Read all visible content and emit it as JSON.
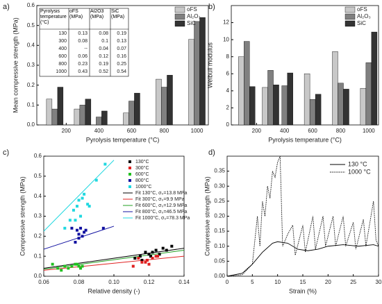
{
  "chart_data": [
    {
      "type": "bar",
      "panel": "a)",
      "x_label": "Pyrolysis temperature (°C)",
      "y_label": "Mean compressive strength (MPa)",
      "x": [
        130,
        300,
        400,
        600,
        800,
        1000
      ],
      "series": [
        {
          "name": "oFS",
          "color": "#c8c8c8",
          "values": [
            0.13,
            0.08,
            null,
            0.06,
            0.23,
            0.43
          ]
        },
        {
          "name": "Al₂O₃",
          "color": "#808080",
          "values": [
            0.08,
            0.1,
            0.04,
            0.12,
            0.19,
            0.52
          ]
        },
        {
          "name": "SiC",
          "color": "#333333",
          "values": [
            0.19,
            0.13,
            0.07,
            0.16,
            0.25,
            0.54
          ]
        }
      ],
      "xlim": [
        20,
        1070
      ],
      "xticks": [
        200,
        400,
        600,
        800,
        1000
      ],
      "ylim": [
        0,
        0.6
      ],
      "yticks": [
        {
          "value": 0,
          "label": "0.0"
        },
        0.1,
        0.2,
        0.3,
        0.4,
        0.5,
        0.6
      ],
      "legend": "upper right",
      "table": {
        "header": [
          "Pyrolysis temperature (°C)",
          "oFS (MPa)",
          "Al2O3 (MPa)",
          "SiC (MPa)"
        ],
        "rows": [
          [
            130,
            0.13,
            0.08,
            0.19
          ],
          [
            300,
            0.08,
            0.1,
            0.13
          ],
          [
            400,
            "--",
            0.04,
            0.07
          ],
          [
            600,
            0.06,
            0.12,
            0.16
          ],
          [
            800,
            0.23,
            0.19,
            0.25
          ],
          [
            1000,
            0.43,
            0.52,
            0.54
          ]
        ]
      }
    },
    {
      "type": "bar",
      "panel": "b)",
      "x_label": "Pyrolysis temperature (°C)",
      "y_label": "Weibull modulus",
      "x": [
        130,
        300,
        400,
        600,
        800,
        1000
      ],
      "series": [
        {
          "name": "oFS",
          "color": "#c8c8c8",
          "values": [
            8.0,
            4.4,
            null,
            6.0,
            8.6,
            4.3
          ]
        },
        {
          "name": "Al₂O₃",
          "color": "#808080",
          "values": [
            9.8,
            6.4,
            4.6,
            3.0,
            4.9,
            7.3
          ]
        },
        {
          "name": "SiC",
          "color": "#333333",
          "values": [
            4.5,
            4.7,
            6.1,
            3.6,
            4.2,
            10.9
          ]
        }
      ],
      "xlim": [
        20,
        1070
      ],
      "xticks": [
        200,
        400,
        600,
        800,
        1000
      ],
      "ylim": [
        0,
        14
      ],
      "yticks": [
        0,
        2,
        4,
        6,
        8,
        10,
        12
      ],
      "legend": "upper right"
    },
    {
      "type": "scatter",
      "panel": "c)",
      "x_label": "Relative density (-)",
      "y_label": "Compressive strength (MPa)",
      "series": [
        {
          "name": "130°C",
          "color": "#000000",
          "x": [
            0.112,
            0.115,
            0.118,
            0.12,
            0.122,
            0.124,
            0.126,
            0.128,
            0.13,
            0.133,
            0.116,
            0.121
          ],
          "values": [
            0.09,
            0.1,
            0.12,
            0.11,
            0.12,
            0.13,
            0.11,
            0.14,
            0.13,
            0.15,
            0.08,
            0.1
          ]
        },
        {
          "name": "300°C",
          "color": "#e02020",
          "x": [
            0.111,
            0.114,
            0.116,
            0.118,
            0.119,
            0.12,
            0.122,
            0.124,
            0.125
          ],
          "values": [
            0.05,
            0.09,
            0.07,
            0.07,
            0.08,
            0.06,
            0.09,
            0.1,
            0.1
          ]
        },
        {
          "name": "600°C",
          "color": "#20c020",
          "x": [
            0.065,
            0.068,
            0.07,
            0.072,
            0.074,
            0.076,
            0.078,
            0.08,
            0.081,
            0.082,
            0.079
          ],
          "values": [
            0.06,
            0.04,
            0.03,
            0.05,
            0.04,
            0.05,
            0.06,
            0.05,
            0.04,
            0.05,
            0.06
          ]
        },
        {
          "name": "800°C",
          "color": "#1010a0",
          "x": [
            0.076,
            0.078,
            0.079,
            0.08,
            0.081,
            0.082,
            0.083,
            0.084,
            0.094,
            0.08
          ],
          "values": [
            0.24,
            0.17,
            0.23,
            0.21,
            0.24,
            0.2,
            0.22,
            0.23,
            0.24,
            0.19
          ]
        },
        {
          "name": "1000°C",
          "color": "#20d8e0",
          "x": [
            0.072,
            0.075,
            0.077,
            0.078,
            0.079,
            0.08,
            0.081,
            0.082,
            0.083,
            0.085,
            0.086,
            0.09,
            0.095
          ],
          "values": [
            0.24,
            0.28,
            0.33,
            0.28,
            0.35,
            0.38,
            0.3,
            0.39,
            0.41,
            0.36,
            0.35,
            0.48,
            0.56
          ]
        }
      ],
      "fits": [
        {
          "name": "Fit 130°C, σ₀=13.8 MPa",
          "color": "#000000",
          "x": [
            0.06,
            0.14
          ],
          "values": [
            0.04,
            0.14
          ]
        },
        {
          "name": "Fit 300°C, σ₀=9.9 MPa",
          "color": "#e02020",
          "x": [
            0.06,
            0.14
          ],
          "values": [
            0.03,
            0.1
          ]
        },
        {
          "name": "Fit 600°C, σ₀=12.9 MPa",
          "color": "#20a020",
          "x": [
            0.06,
            0.14
          ],
          "values": [
            0.035,
            0.13
          ]
        },
        {
          "name": "Fit 800°C, σ₀=46.5 MPa",
          "color": "#1010a0",
          "x": [
            0.06,
            0.1
          ],
          "values": [
            0.135,
            0.25
          ]
        },
        {
          "name": "Fit 1000°C, σ₀=78.3 MPa",
          "color": "#20d8e0",
          "x": [
            0.06,
            0.1
          ],
          "values": [
            0.225,
            0.58
          ]
        }
      ],
      "xlim": [
        0.06,
        0.14
      ],
      "xticks": [
        0.06,
        0.08,
        {
          "value": 0.1,
          "label": "0.10"
        },
        0.12,
        0.14
      ],
      "ylim": [
        0,
        0.6
      ],
      "yticks": [
        {
          "value": 0,
          "label": "0.0"
        },
        0.1,
        0.2,
        0.3,
        0.4,
        0.5,
        0.6
      ],
      "legend": "upper right"
    },
    {
      "type": "line",
      "panel": "d)",
      "x_label": "Strain (%)",
      "y_label": "Compressive strength (MPa)",
      "series": [
        {
          "name": "130 °C",
          "color": "#000000",
          "dash": "solid",
          "x": [
            0,
            3,
            5,
            7,
            9,
            10,
            12,
            14,
            16,
            18,
            20,
            23,
            26,
            29,
            30
          ],
          "values": [
            0,
            0.01,
            0.04,
            0.08,
            0.11,
            0.115,
            0.11,
            0.09,
            0.085,
            0.09,
            0.1,
            0.105,
            0.1,
            0.105,
            0.1
          ]
        },
        {
          "name": "1000 °C",
          "color": "#000000",
          "dash": "dotted",
          "x": [
            0,
            3,
            5,
            6,
            6.5,
            7,
            7.5,
            8,
            8.5,
            9,
            9.5,
            10,
            10.5,
            11,
            12,
            13,
            13.5,
            15,
            15.5,
            17,
            17.5,
            19,
            19.5,
            21,
            21.5,
            23,
            23.5,
            25,
            25.5,
            27,
            27.5,
            29,
            29.5,
            30
          ],
          "values": [
            0,
            0.005,
            0.04,
            0.2,
            0.1,
            0.25,
            0.2,
            0.3,
            0.26,
            0.35,
            0.33,
            0.38,
            0.4,
            0.1,
            0.14,
            0.17,
            0.07,
            0.17,
            0.08,
            0.2,
            0.09,
            0.2,
            0.1,
            0.2,
            0.1,
            0.2,
            0.1,
            0.18,
            0.09,
            0.19,
            0.1,
            0.25,
            0.12,
            0.1
          ]
        }
      ],
      "xlim": [
        0,
        30
      ],
      "xticks": [
        0,
        5,
        10,
        15,
        20,
        25,
        30
      ],
      "ylim": [
        0,
        0.4
      ],
      "yticks": [
        {
          "value": 0,
          "label": "0.00"
        },
        0.05,
        {
          "value": 0.1,
          "label": "0.10"
        },
        0.15,
        {
          "value": 0.2,
          "label": "0.20"
        },
        0.25,
        {
          "value": 0.3,
          "label": "0.30"
        },
        0.35
      ],
      "legend": "upper right"
    }
  ]
}
